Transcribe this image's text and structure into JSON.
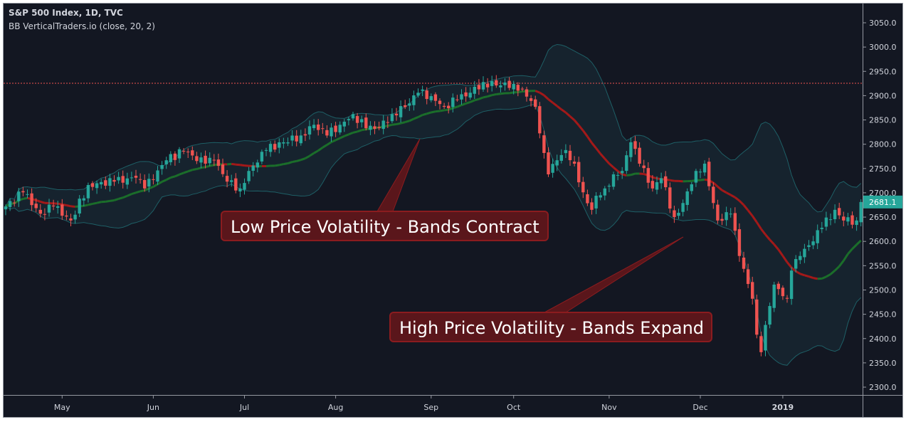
{
  "header": {
    "title": "S&P 500 Index, 1D, TVC",
    "indicator": "BB VerticalTraders.io (close, 20, 2)"
  },
  "annotations": {
    "low_vol": "Low Price Volatility - Bands Contract",
    "high_vol": "High Price Volatility - Bands Expand"
  },
  "colors": {
    "background": "#131722",
    "up": "#26a69a",
    "down": "#ef5350",
    "band": "#1e5f66",
    "band_fill": "#172530",
    "basis_up": "#1b6e2a",
    "basis_down": "#a31919",
    "ref_line": "#ef5350",
    "last_price_bg": "#26a69a"
  },
  "chart_data": {
    "type": "candlestick",
    "title": "S&P 500 Index, 1D, TVC",
    "indicator": {
      "name": "Bollinger Bands",
      "source": "close",
      "length": 20,
      "mult": 2
    },
    "close_keypoints": [
      [
        0,
        2672
      ],
      [
        4,
        2701
      ],
      [
        8,
        2657
      ],
      [
        11,
        2672
      ],
      [
        15,
        2643
      ],
      [
        19,
        2716
      ],
      [
        25,
        2723
      ],
      [
        30,
        2731
      ],
      [
        32,
        2709
      ],
      [
        37,
        2767
      ],
      [
        41,
        2786
      ],
      [
        46,
        2760
      ],
      [
        48,
        2767
      ],
      [
        51,
        2723
      ],
      [
        54,
        2709
      ],
      [
        56,
        2745
      ],
      [
        60,
        2788
      ],
      [
        64,
        2804
      ],
      [
        68,
        2818
      ],
      [
        71,
        2840
      ],
      [
        74,
        2818
      ],
      [
        77,
        2840
      ],
      [
        80,
        2862
      ],
      [
        83,
        2833
      ],
      [
        86,
        2833
      ],
      [
        89,
        2862
      ],
      [
        93,
        2884
      ],
      [
        95,
        2906
      ],
      [
        98,
        2899
      ],
      [
        101,
        2877
      ],
      [
        104,
        2892
      ],
      [
        107,
        2906
      ],
      [
        110,
        2928
      ],
      [
        113,
        2921
      ],
      [
        117,
        2924
      ],
      [
        119,
        2914
      ],
      [
        122,
        2877
      ],
      [
        124,
        2782
      ],
      [
        125,
        2738
      ],
      [
        127,
        2767
      ],
      [
        129,
        2788
      ],
      [
        131,
        2760
      ],
      [
        133,
        2701
      ],
      [
        135,
        2665
      ],
      [
        136,
        2694
      ],
      [
        138,
        2709
      ],
      [
        140,
        2738
      ],
      [
        142,
        2745
      ],
      [
        144,
        2804
      ],
      [
        146,
        2760
      ],
      [
        149,
        2709
      ],
      [
        151,
        2730
      ],
      [
        154,
        2650
      ],
      [
        156,
        2679
      ],
      [
        159,
        2745
      ],
      [
        161,
        2760
      ],
      [
        163,
        2679
      ],
      [
        164,
        2643
      ],
      [
        167,
        2657
      ],
      [
        169,
        2570
      ],
      [
        172,
        2482
      ],
      [
        173,
        2408
      ],
      [
        174,
        2372
      ],
      [
        176,
        2467
      ],
      [
        177,
        2511
      ],
      [
        180,
        2482
      ],
      [
        181,
        2540
      ],
      [
        183,
        2570
      ],
      [
        185,
        2592
      ],
      [
        188,
        2628
      ],
      [
        191,
        2665
      ],
      [
        193,
        2643
      ],
      [
        196,
        2643
      ],
      [
        197,
        2681.1
      ]
    ],
    "x_ticks": [
      {
        "label": "May",
        "day": 13
      },
      {
        "label": "Jun",
        "day": 34
      },
      {
        "label": "Jul",
        "day": 55
      },
      {
        "label": "Aug",
        "day": 76
      },
      {
        "label": "Sep",
        "day": 98
      },
      {
        "label": "Oct",
        "day": 117
      },
      {
        "label": "Nov",
        "day": 139
      },
      {
        "label": "Dec",
        "day": 160
      },
      {
        "label": "2019",
        "day": 179,
        "bold": true
      }
    ],
    "y_ticks": [
      "3050.0",
      "3000.0",
      "2950.0",
      "2900.0",
      "2850.0",
      "2800.0",
      "2750.0",
      "2700.0",
      "2650.0",
      "2600.0",
      "2550.0",
      "2500.0",
      "2450.0",
      "2400.0",
      "2350.0",
      "2300.0"
    ],
    "ylim": [
      2300,
      3050
    ],
    "reference_line": 2925.5,
    "last_price": "2681.1"
  }
}
